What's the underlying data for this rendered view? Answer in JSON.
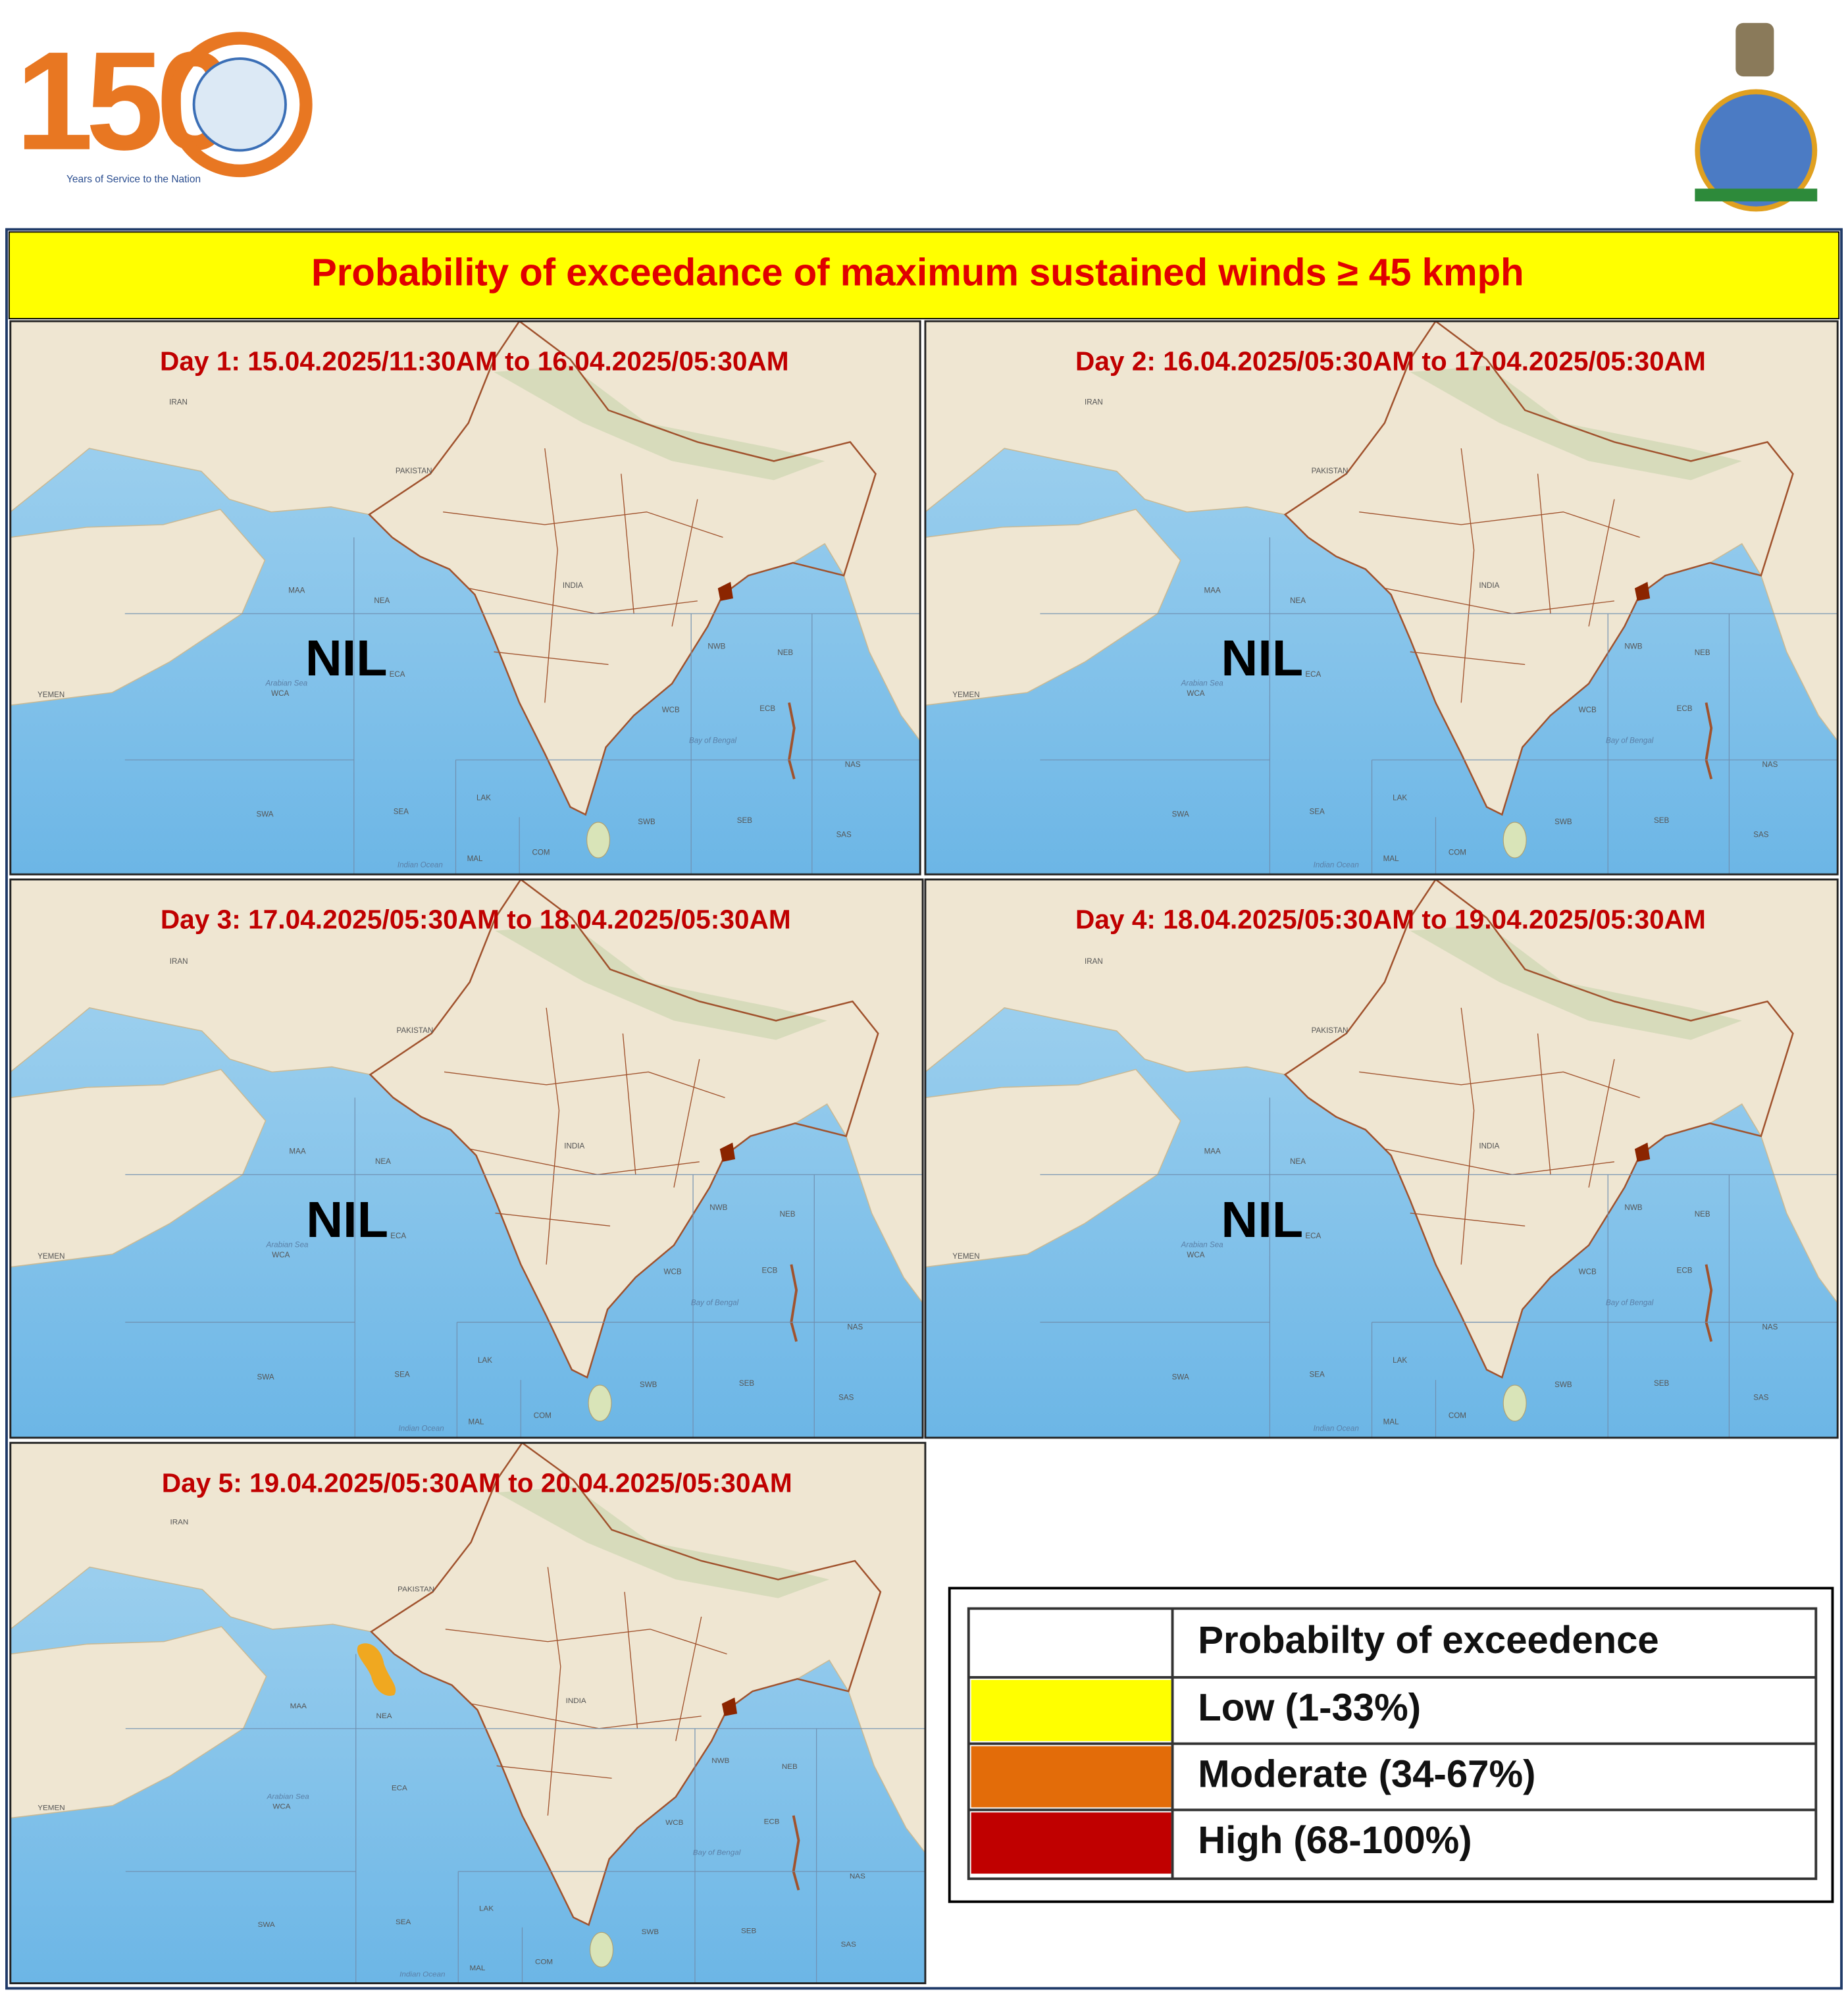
{
  "header": {
    "logo_number": "150",
    "logo_tagline": "Years of Service to the Nation"
  },
  "title": "Probability  of exceedance of maximum  sustained  winds ≥ 45 kmph",
  "map_labels": [
    "MAA",
    "NEA",
    "ECA",
    "WCA",
    "SWA",
    "SEA",
    "LAK",
    "MAL",
    "COM",
    "NWB",
    "NEB",
    "WCB",
    "ECB",
    "SWB",
    "SEB",
    "NAS",
    "SAS",
    "PAKISTAN",
    "IRAN",
    "INDIA",
    "YEMEN",
    "Arabian Sea",
    "Bay of Bengal",
    "Indian Ocean"
  ],
  "panels": [
    {
      "label": "Day 1: 15.04.2025/11:30AM  to 16.04.2025/05:30AM",
      "status": "NIL"
    },
    {
      "label": "Day 2: 16.04.2025/05:30AM  to 17.04.2025/05:30AM",
      "status": "NIL"
    },
    {
      "label": "Day 3: 17.04.2025/05:30AM  to 18.04.2025/05:30AM",
      "status": "NIL"
    },
    {
      "label": "Day 4: 18.04.2025/05:30AM  to 19.04.2025/05:30AM",
      "status": "NIL"
    },
    {
      "label": "Day 5: 19.04.2025/05:30AM  to 20.04.2025/05:30AM"
    }
  ],
  "legend": {
    "header": "Probabilty of exceedence",
    "rows": [
      {
        "label": "Low (1-33%)",
        "color": "#ffff00"
      },
      {
        "label": "Moderate (34-67%)",
        "color": "#e36c09"
      },
      {
        "label": "High (68-100%)",
        "color": "#c00000"
      }
    ]
  }
}
